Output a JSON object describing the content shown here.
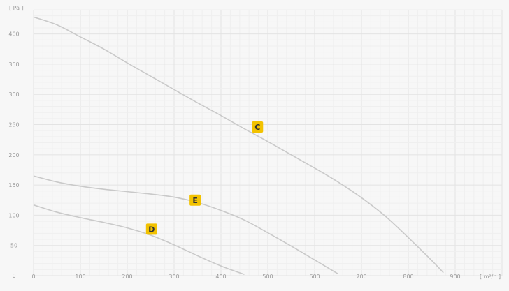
{
  "chart_data": {
    "type": "line",
    "x_unit": "[ m³/h ]",
    "y_unit": "[ Pa ]",
    "x_ticks": [
      0,
      100,
      200,
      300,
      400,
      500,
      600,
      700,
      800,
      900
    ],
    "x_tick_labels": [
      "0",
      "100",
      "200",
      "300",
      "400",
      "500",
      "600",
      "700",
      "800",
      "900"
    ],
    "y_ticks": [
      0,
      50,
      100,
      150,
      200,
      250,
      300,
      350,
      400
    ],
    "y_tick_labels": [
      "0",
      "50",
      "100",
      "150",
      "200",
      "250",
      "300",
      "350",
      "400"
    ],
    "xlim": [
      0,
      1000
    ],
    "ylim": [
      0,
      440
    ],
    "grid": true,
    "series": [
      {
        "name": "C",
        "color": "#c9c9c9",
        "points": [
          [
            0,
            428
          ],
          [
            50,
            415
          ],
          [
            100,
            395
          ],
          [
            150,
            375
          ],
          [
            200,
            352
          ],
          [
            250,
            330
          ],
          [
            300,
            308
          ],
          [
            350,
            286
          ],
          [
            400,
            265
          ],
          [
            450,
            243
          ],
          [
            500,
            222
          ],
          [
            550,
            200
          ],
          [
            600,
            178
          ],
          [
            650,
            155
          ],
          [
            700,
            129
          ],
          [
            750,
            99
          ],
          [
            800,
            63
          ],
          [
            850,
            25
          ],
          [
            875,
            5
          ]
        ],
        "label_at": [
          478,
          246
        ]
      },
      {
        "name": "E",
        "color": "#c9c9c9",
        "points": [
          [
            0,
            165
          ],
          [
            50,
            155
          ],
          [
            100,
            148
          ],
          [
            150,
            143
          ],
          [
            200,
            139
          ],
          [
            250,
            135
          ],
          [
            300,
            130
          ],
          [
            350,
            121
          ],
          [
            400,
            108
          ],
          [
            450,
            92
          ],
          [
            500,
            71
          ],
          [
            550,
            49
          ],
          [
            600,
            26
          ],
          [
            650,
            3
          ]
        ],
        "label_at": [
          345,
          125
        ]
      },
      {
        "name": "D",
        "color": "#c9c9c9",
        "points": [
          [
            0,
            117
          ],
          [
            50,
            105
          ],
          [
            100,
            96
          ],
          [
            150,
            88
          ],
          [
            200,
            79
          ],
          [
            250,
            67
          ],
          [
            300,
            51
          ],
          [
            350,
            33
          ],
          [
            400,
            16
          ],
          [
            450,
            2
          ]
        ],
        "label_at": [
          252,
          77
        ]
      }
    ],
    "label_box_color": "#f2c200",
    "label_text_color": "#333333"
  }
}
